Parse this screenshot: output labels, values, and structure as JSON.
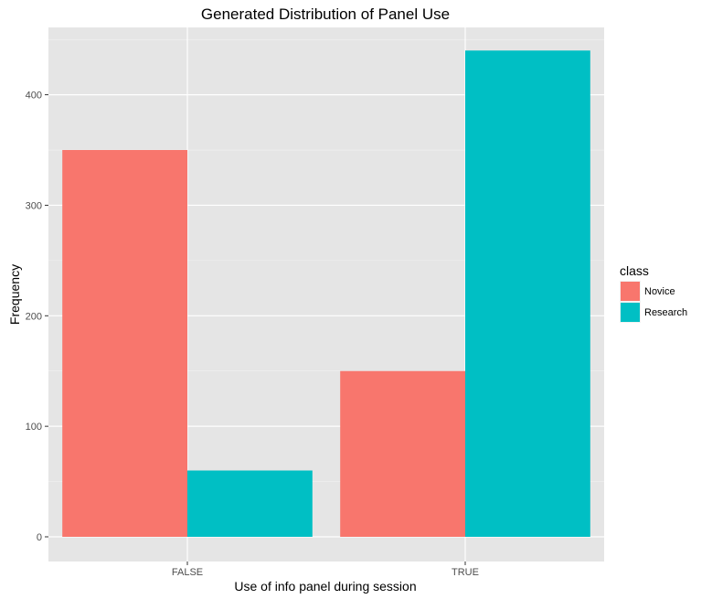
{
  "chart_data": {
    "type": "bar",
    "title": "Generated Distribution of Panel Use",
    "xlabel": "Use of info panel during session",
    "ylabel": "Frequency",
    "categories": [
      "FALSE",
      "TRUE"
    ],
    "series": [
      {
        "name": "Novice",
        "values": [
          350,
          150
        ],
        "color": "#F8766D"
      },
      {
        "name": "Research",
        "values": [
          60,
          440
        ],
        "color": "#00BFC4"
      }
    ],
    "ylim": [
      0,
      462
    ],
    "yticks": [
      0,
      100,
      200,
      300,
      400
    ],
    "grid": true,
    "legend": {
      "title": "class",
      "position": "right"
    },
    "panel_background": "#E5E5E5"
  }
}
